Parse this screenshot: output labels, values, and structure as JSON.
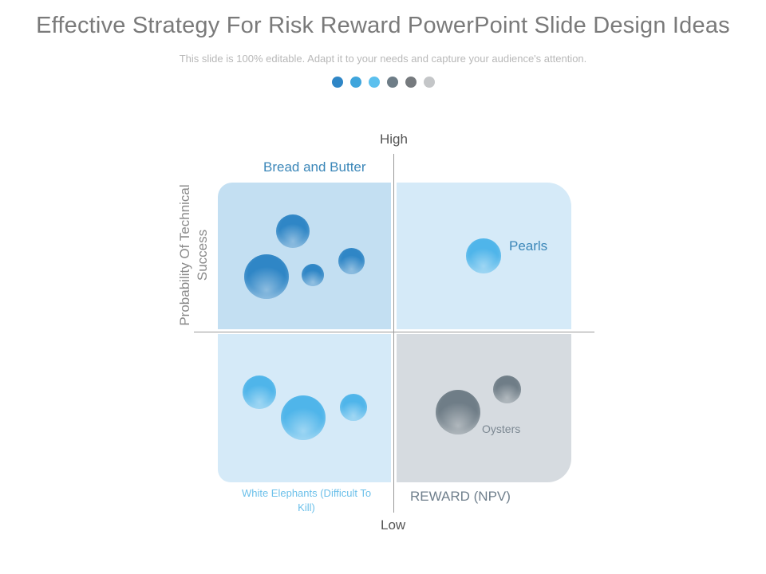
{
  "header": {
    "title": "Effective Strategy For Risk Reward PowerPoint Slide Design Ideas",
    "subtitle": "This slide is 100% editable. Adapt it to your needs and capture your audience's attention."
  },
  "pager_dots": [
    "#2f86c6",
    "#3fa5dc",
    "#5cc0ee",
    "#6e7d87",
    "#767a7e",
    "#c4c6c8"
  ],
  "axes": {
    "high": "High",
    "low": "Low",
    "reward": "REWARD (NPV)",
    "probability": "Probability Of Technical Success"
  },
  "quadrants": {
    "top_left": {
      "label": "Bread and Butter",
      "fill": "#c3dff2",
      "label_color": "#3a86b8"
    },
    "top_right": {
      "label": "Pearls",
      "fill": "#d5eaf8",
      "label_color": "#3a86b8"
    },
    "bottom_left": {
      "label": "White Elephants (Difficult To Kill)",
      "fill": "#d5eaf8",
      "label_color": "#6cc0ea"
    },
    "bottom_right": {
      "label": "Oysters",
      "fill": "#d6dbe0",
      "label_color": "#7c8892"
    }
  },
  "colors": {
    "blue_dark": "#2f86c6",
    "blue_light": "#4fb5ea",
    "gray": "#6f7d87"
  }
}
